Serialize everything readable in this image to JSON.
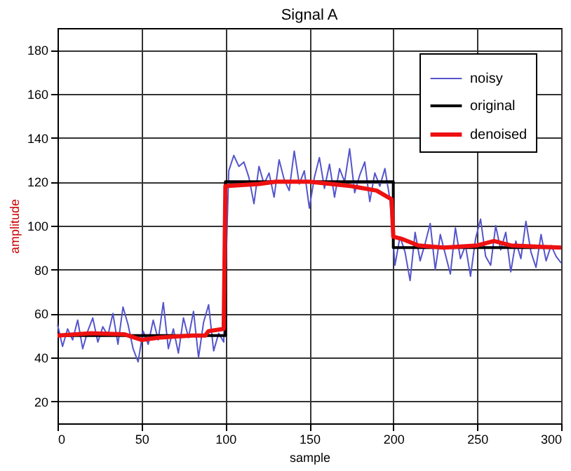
{
  "chart_data": {
    "type": "line",
    "title": "Signal  A",
    "xlabel": "sample",
    "ylabel": "amplitude",
    "xlim": [
      0,
      300
    ],
    "xticks": [
      0,
      50,
      100,
      150,
      200,
      250,
      300
    ],
    "ylim": [
      10,
      190
    ],
    "yticks": [
      20,
      40,
      60,
      80,
      100,
      120,
      140,
      160,
      180
    ],
    "grid": true,
    "legend": "top right",
    "marker": "none",
    "line_style": "solid",
    "series": [
      {
        "name": "noisy",
        "color": "#5555cc",
        "x": [
          0,
          3,
          6,
          9,
          12,
          15,
          18,
          21,
          24,
          27,
          30,
          33,
          36,
          39,
          42,
          45,
          48,
          51,
          54,
          57,
          60,
          63,
          66,
          69,
          72,
          75,
          78,
          81,
          84,
          87,
          90,
          93,
          96,
          99,
          102,
          105,
          108,
          111,
          114,
          117,
          120,
          123,
          126,
          129,
          132,
          135,
          138,
          141,
          144,
          147,
          150,
          153,
          156,
          159,
          162,
          165,
          168,
          171,
          174,
          177,
          180,
          183,
          186,
          189,
          192,
          195,
          198,
          201,
          204,
          207,
          210,
          213,
          216,
          219,
          222,
          225,
          228,
          231,
          234,
          237,
          240,
          243,
          246,
          249,
          252,
          255,
          258,
          261,
          264,
          267,
          270,
          273,
          276,
          279,
          282,
          285,
          288,
          291,
          294,
          297,
          300
        ],
        "values": [
          55,
          45,
          53,
          48,
          57,
          44,
          52,
          58,
          47,
          54,
          50,
          60,
          46,
          63,
          55,
          44,
          38,
          52,
          46,
          57,
          48,
          65,
          44,
          53,
          42,
          58,
          49,
          61,
          40,
          56,
          64,
          43,
          51,
          47,
          125,
          132,
          127,
          129,
          122,
          110,
          127,
          119,
          124,
          113,
          130,
          121,
          116,
          134,
          119,
          125,
          108,
          122,
          131,
          117,
          128,
          113,
          126,
          120,
          135,
          115,
          123,
          129,
          111,
          124,
          118,
          126,
          112,
          82,
          95,
          88,
          75,
          97,
          84,
          92,
          101,
          80,
          96,
          87,
          78,
          99,
          85,
          91,
          77,
          94,
          103,
          86,
          82,
          100,
          89,
          97,
          79,
          93,
          85,
          102,
          88,
          81,
          96,
          84,
          91,
          86,
          83
        ]
      },
      {
        "name": "original",
        "color": "#000000",
        "x": [
          0,
          100,
          100,
          200,
          200,
          300
        ],
        "values": [
          50,
          50,
          120,
          120,
          90,
          90
        ]
      },
      {
        "name": "denoised",
        "color": "#ee1111",
        "x": [
          0,
          20,
          40,
          50,
          60,
          80,
          88,
          90,
          99,
          100,
          120,
          130,
          150,
          175,
          190,
          199,
          200,
          205,
          215,
          230,
          250,
          260,
          270,
          300
        ],
        "values": [
          50,
          51,
          50.5,
          48,
          49,
          50,
          50,
          52,
          53,
          118,
          119,
          120,
          120,
          118,
          116,
          112,
          95,
          94,
          91,
          90,
          91,
          93,
          91,
          90
        ]
      }
    ]
  }
}
